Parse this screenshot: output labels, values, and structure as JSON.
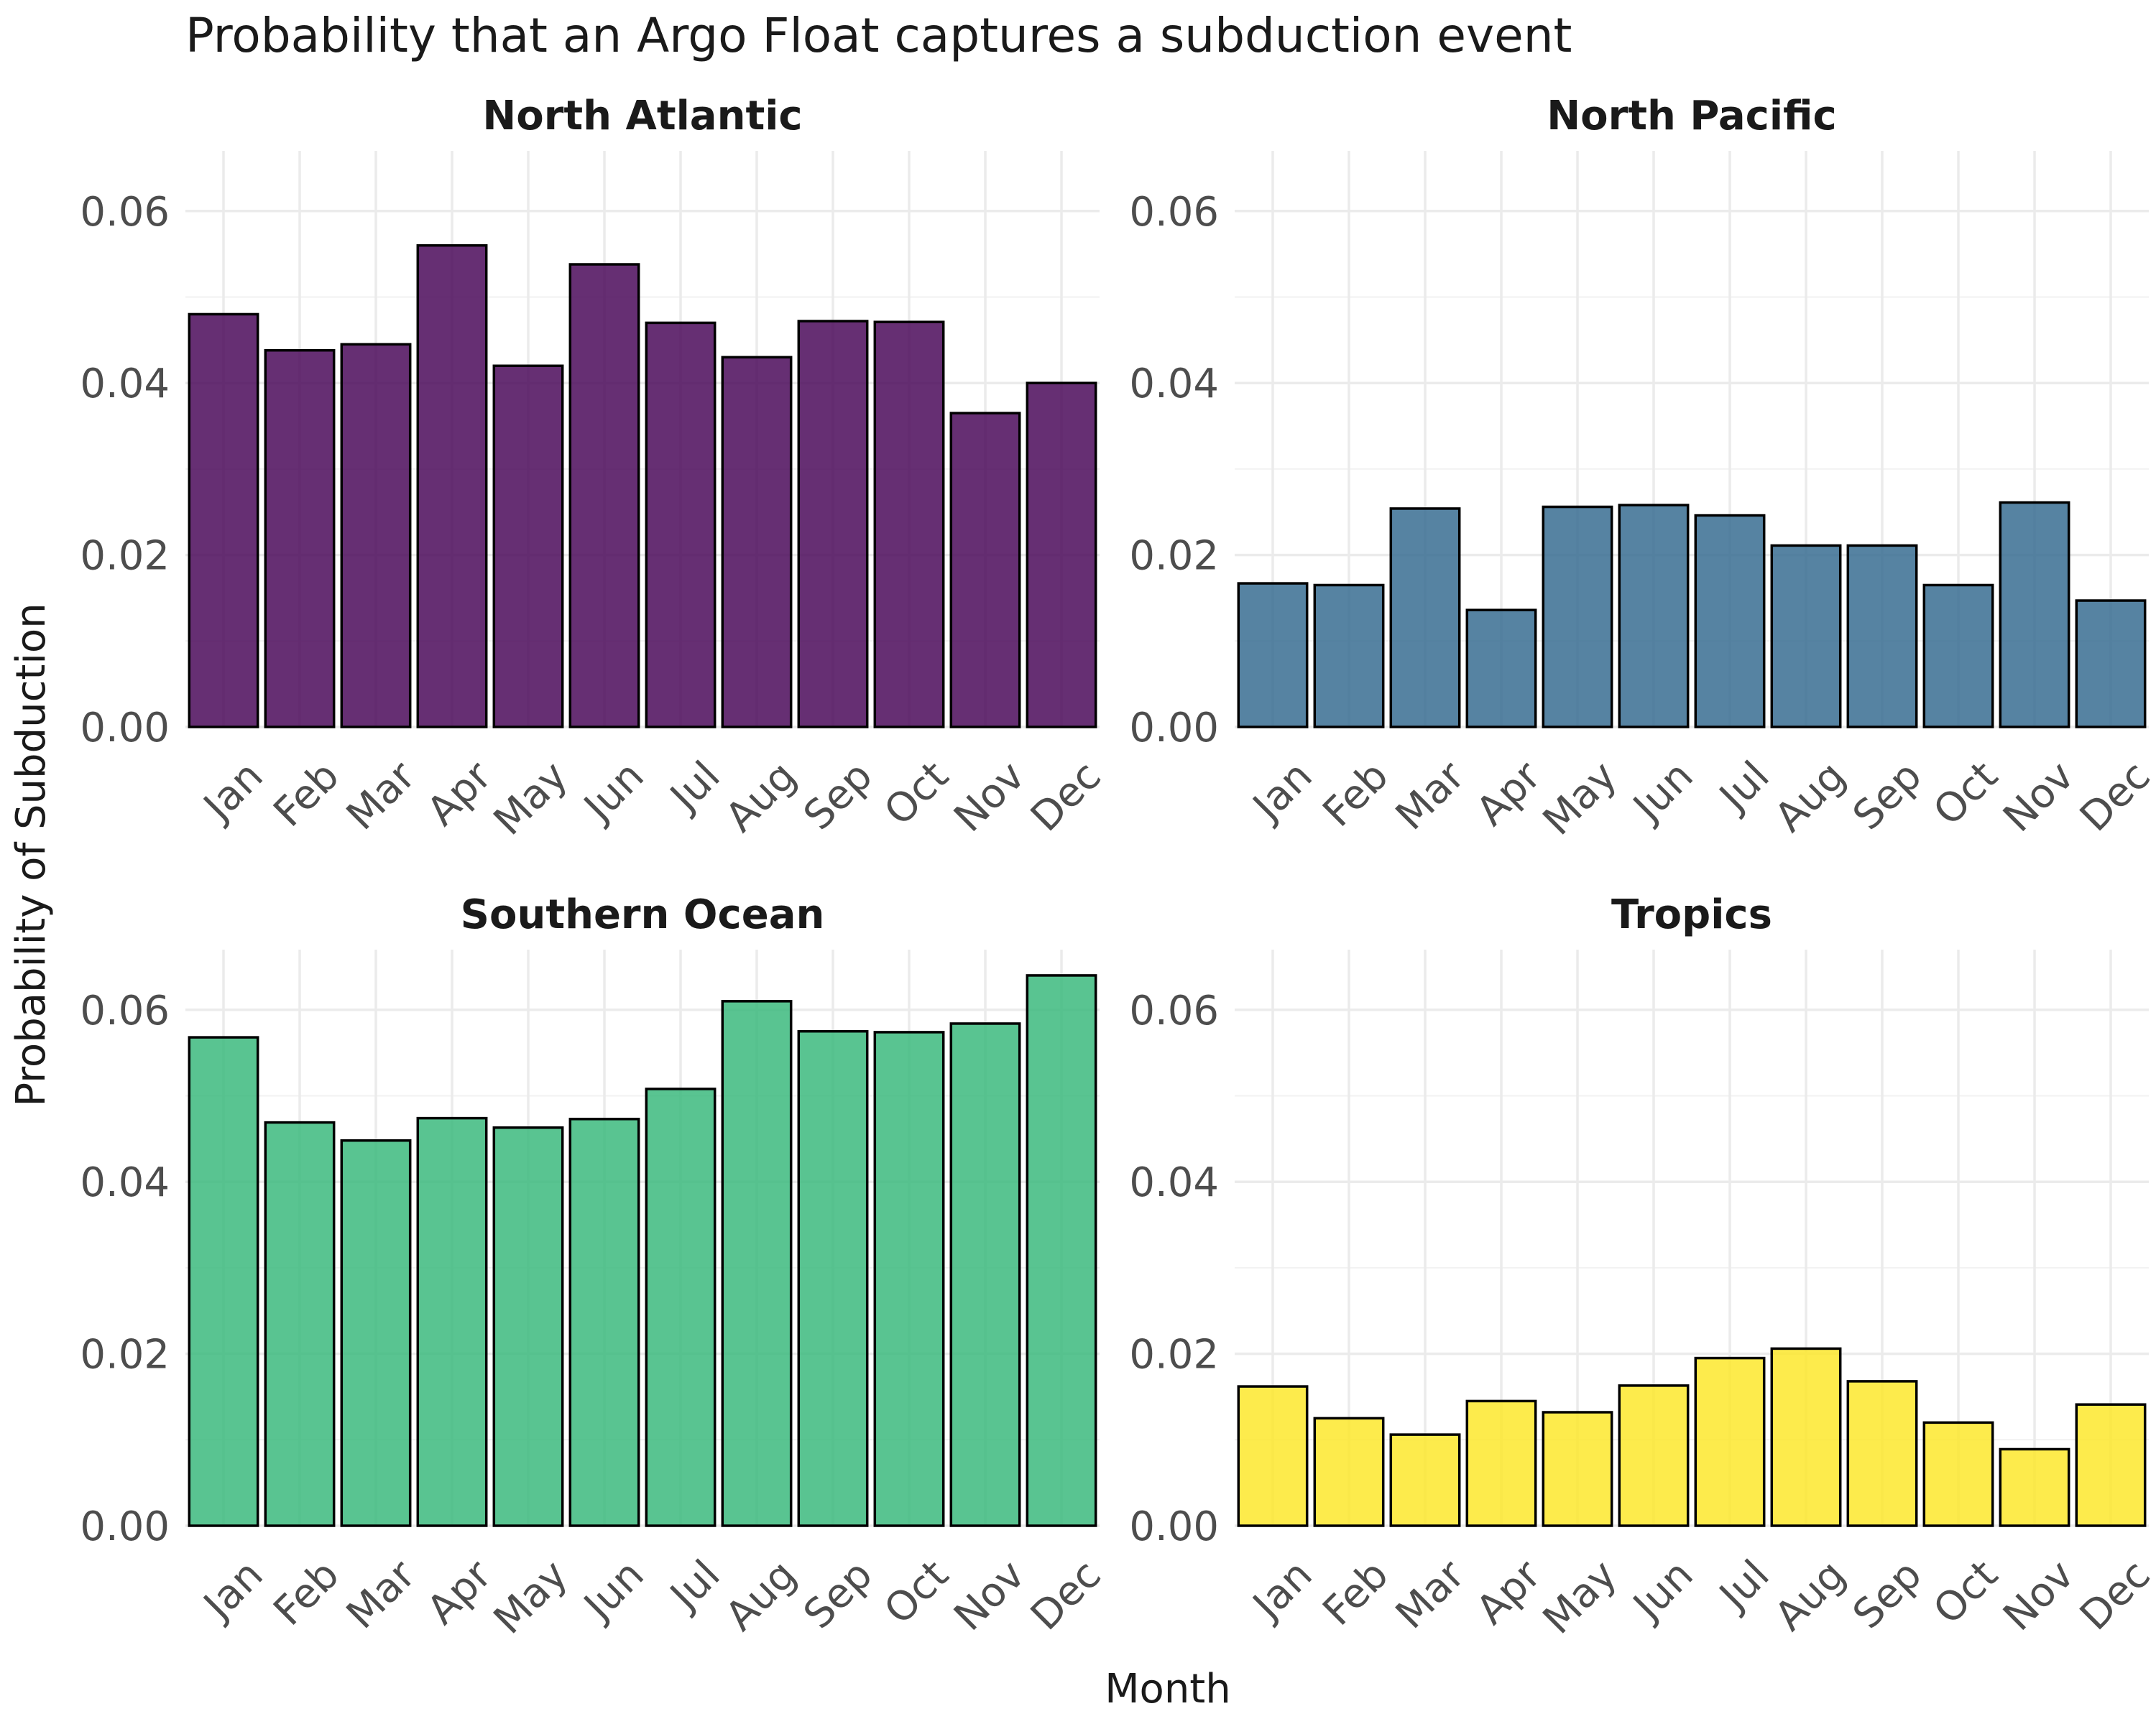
{
  "chart_data": {
    "type": "bar",
    "title": "Probability that an Argo Float captures a subduction event",
    "xlabel": "Month",
    "ylabel": "Probability of Subduction",
    "categories": [
      "Jan",
      "Feb",
      "Mar",
      "Apr",
      "May",
      "Jun",
      "Jul",
      "Aug",
      "Sep",
      "Oct",
      "Nov",
      "Dec"
    ],
    "ylim": [
      0,
      0.067
    ],
    "yticks": [
      0.0,
      0.02,
      0.04,
      0.06
    ],
    "ytick_labels": [
      "0.00",
      "0.02",
      "0.04",
      "0.06"
    ],
    "grid": true,
    "legend": "none",
    "facets": [
      {
        "name": "North Atlantic",
        "color": "#440154",
        "values": [
          0.048,
          0.0438,
          0.0445,
          0.056,
          0.042,
          0.0538,
          0.047,
          0.043,
          0.0472,
          0.0471,
          0.0365,
          0.04
        ]
      },
      {
        "name": "North Pacific",
        "color": "#31688E",
        "values": [
          0.0167,
          0.0165,
          0.0254,
          0.0136,
          0.0256,
          0.0258,
          0.0246,
          0.0211,
          0.0211,
          0.0165,
          0.0261,
          0.0147
        ]
      },
      {
        "name": "Southern Ocean",
        "color": "#35B779",
        "values": [
          0.0568,
          0.0469,
          0.0448,
          0.0474,
          0.0463,
          0.0473,
          0.0508,
          0.061,
          0.0575,
          0.0574,
          0.0584,
          0.064
        ]
      },
      {
        "name": "Tropics",
        "color": "#FDE725",
        "values": [
          0.0162,
          0.0125,
          0.0106,
          0.0145,
          0.0132,
          0.0163,
          0.0195,
          0.0206,
          0.0168,
          0.012,
          0.0089,
          0.0141
        ]
      }
    ]
  }
}
